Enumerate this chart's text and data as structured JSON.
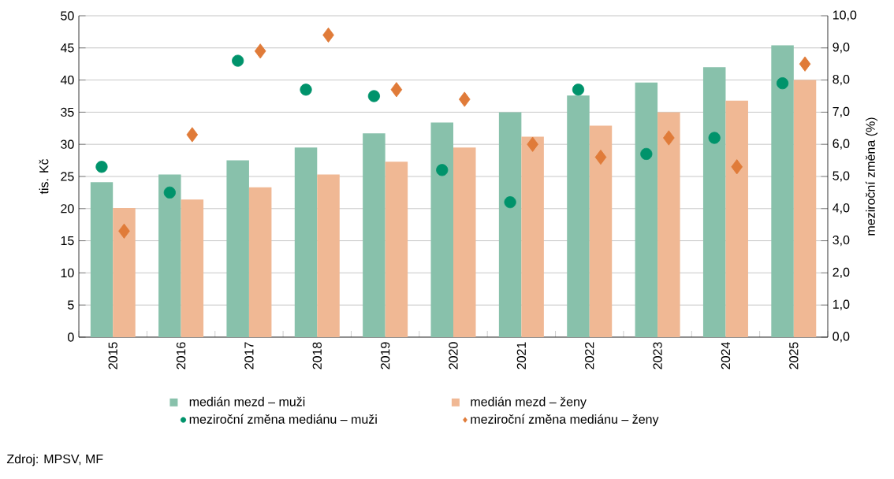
{
  "chart_data": {
    "type": "bar",
    "ylabel": "tis. Kč",
    "y2label": "meziroční změna (%)",
    "categories": [
      "2015",
      "2016",
      "2017",
      "2018",
      "2019",
      "2020",
      "2021",
      "2022",
      "2023",
      "2024",
      "2025"
    ],
    "series": [
      {
        "name": "medián mezd – muži",
        "color": "#88c1ab",
        "values": [
          24.1,
          25.3,
          27.5,
          29.5,
          31.7,
          33.4,
          35.0,
          37.6,
          39.6,
          42.0,
          45.4
        ]
      },
      {
        "name": "medián mezd – ženy",
        "color": "#f0b894",
        "values": [
          20.1,
          21.4,
          23.3,
          25.3,
          27.3,
          29.5,
          31.2,
          32.9,
          35.0,
          36.8,
          40.0
        ]
      },
      {
        "name": "meziroční změna mediánu – muži",
        "type": "scatter",
        "axis": "y2",
        "marker": "circle",
        "color": "#00936b",
        "values": [
          5.3,
          4.5,
          8.6,
          7.7,
          7.5,
          5.2,
          4.2,
          7.7,
          5.7,
          6.2,
          7.9
        ]
      },
      {
        "name": "meziroční změna mediánu – ženy",
        "type": "scatter",
        "axis": "y2",
        "marker": "diamond",
        "color": "#e07b39",
        "values": [
          3.3,
          6.3,
          8.9,
          9.4,
          7.7,
          7.4,
          6.0,
          5.6,
          6.2,
          5.3,
          8.5
        ]
      }
    ],
    "ylim": [
      0,
      50
    ],
    "yticks": [
      0,
      5,
      10,
      15,
      20,
      25,
      30,
      35,
      40,
      45,
      50
    ],
    "y2lim": [
      0,
      10
    ],
    "y2ticks": [
      {
        "value": 0,
        "label": "0,0"
      },
      {
        "value": 1,
        "label": "1,0"
      },
      {
        "value": 2,
        "label": "2,0"
      },
      {
        "value": 3,
        "label": "3,0"
      },
      {
        "value": 4,
        "label": "4,0"
      },
      {
        "value": 5,
        "label": "5,0"
      },
      {
        "value": 6,
        "label": "6,0"
      },
      {
        "value": 7,
        "label": "7,0"
      },
      {
        "value": 8,
        "label": "8,0"
      },
      {
        "value": 9,
        "label": "9,0"
      },
      {
        "value": 10,
        "label": "10,0"
      }
    ],
    "grid": "y",
    "legend": "bottom",
    "annotations": [
      "Zdroj: MPSV, MF"
    ]
  }
}
